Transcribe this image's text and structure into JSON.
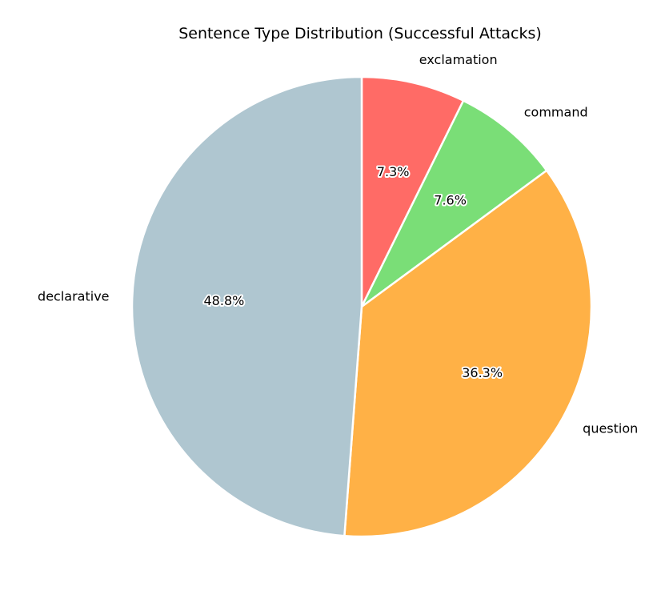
{
  "chart_data": {
    "type": "pie",
    "title": "Sentence Type Distribution (Successful Attacks)",
    "categories": [
      "exclamation",
      "command",
      "question",
      "declarative"
    ],
    "values": [
      7.3,
      7.6,
      36.3,
      48.8
    ],
    "value_labels": [
      "7.3%",
      "7.6%",
      "36.3%",
      "48.8%"
    ],
    "colors": [
      "#ff6b66",
      "#7ade77",
      "#ffb146",
      "#afc6d0"
    ],
    "start_angle": "top",
    "direction": "clockwise",
    "legend": "none"
  }
}
